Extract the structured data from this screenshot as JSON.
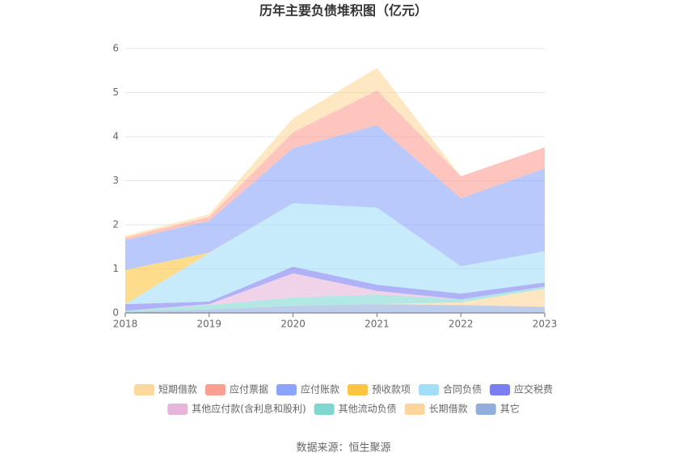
{
  "chart_data": {
    "type": "stacked-area",
    "title": "历年主要负债堆积图（亿元）",
    "source": "数据来源：恒生聚源",
    "x": [
      2018,
      2019,
      2020,
      2021,
      2022,
      2023
    ],
    "xlim": [
      2018,
      2023
    ],
    "xticks": [
      2018,
      2019,
      2020,
      2021,
      2022,
      2023
    ],
    "ylim": [
      0,
      6
    ],
    "yticks": [
      0,
      1,
      2,
      3,
      4,
      5,
      6
    ],
    "grid": true,
    "legend": "bottom",
    "series": [
      {
        "name": "短期借款",
        "color": "#fdd89b",
        "values": [
          0.04,
          0.06,
          0.32,
          0.51,
          0,
          0
        ]
      },
      {
        "name": "应付票据",
        "color": "#fb9f92",
        "values": [
          0.06,
          0.09,
          0.36,
          0.79,
          0.5,
          0.48
        ]
      },
      {
        "name": "应付账款",
        "color": "#8aa5fa",
        "values": [
          0.67,
          0.72,
          1.25,
          1.87,
          1.54,
          1.88
        ]
      },
      {
        "name": "预收款项",
        "color": "#fcc440",
        "values": [
          0.78,
          0.01,
          0,
          0,
          0,
          0
        ]
      },
      {
        "name": "合同负债",
        "color": "#a4ddf9",
        "values": [
          0,
          1.1,
          1.44,
          1.75,
          0.62,
          0.71
        ]
      },
      {
        "name": "应交税费",
        "color": "#7a7ef0",
        "values": [
          0.15,
          0.06,
          0.15,
          0.14,
          0.13,
          0.09
        ]
      },
      {
        "name": "其他应付款(含利息和股利)",
        "color": "#e8b5da",
        "values": [
          0,
          0.02,
          0.55,
          0.08,
          0,
          0
        ]
      },
      {
        "name": "其他流动负债",
        "color": "#80d7d1",
        "values": [
          0.02,
          0.1,
          0.19,
          0.22,
          0.07,
          0.05
        ]
      },
      {
        "name": "长期借款",
        "color": "#fdd59b",
        "values": [
          0,
          0,
          0,
          0,
          0.06,
          0.41
        ]
      },
      {
        "name": "其它",
        "color": "#92aedc",
        "values": [
          0.03,
          0.08,
          0.16,
          0.2,
          0.18,
          0.14
        ]
      }
    ]
  }
}
